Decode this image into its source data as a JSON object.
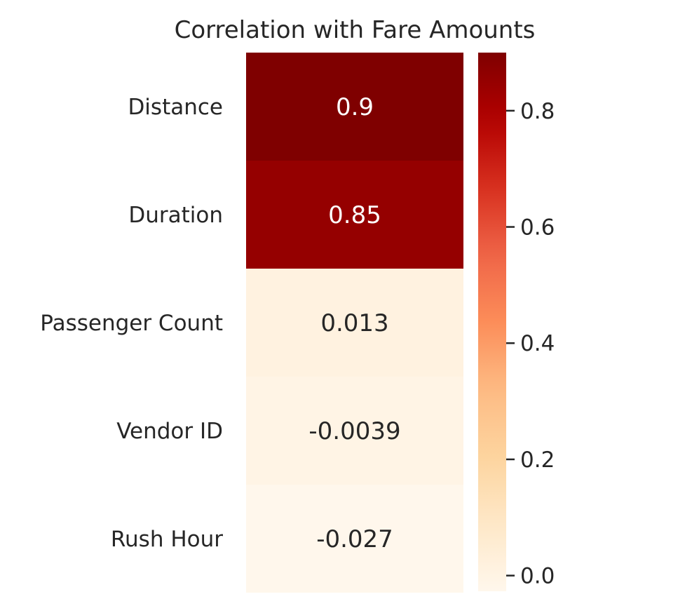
{
  "chart_data": {
    "type": "heatmap",
    "title": "Correlation with Fare Amounts",
    "xlabel": "",
    "ylabel": "",
    "categories": [
      "Distance",
      "Duration",
      "Passenger Count",
      "Vendor ID",
      "Rush Hour"
    ],
    "values": [
      0.9,
      0.85,
      0.013,
      -0.0039,
      -0.027
    ],
    "value_labels": [
      "0.9",
      "0.85",
      "0.013",
      "-0.0039",
      "-0.027"
    ],
    "colormap": "OrRd",
    "colorbar": {
      "vmin": -0.027,
      "vmax": 0.9,
      "ticks": [
        0.0,
        0.2,
        0.4,
        0.6,
        0.8
      ],
      "tick_labels": [
        "0.0",
        "0.2",
        "0.4",
        "0.6",
        "0.8"
      ]
    },
    "annotation_colors": {
      "dark_cell_text": "#ffffff",
      "light_cell_text": "#262626"
    }
  }
}
